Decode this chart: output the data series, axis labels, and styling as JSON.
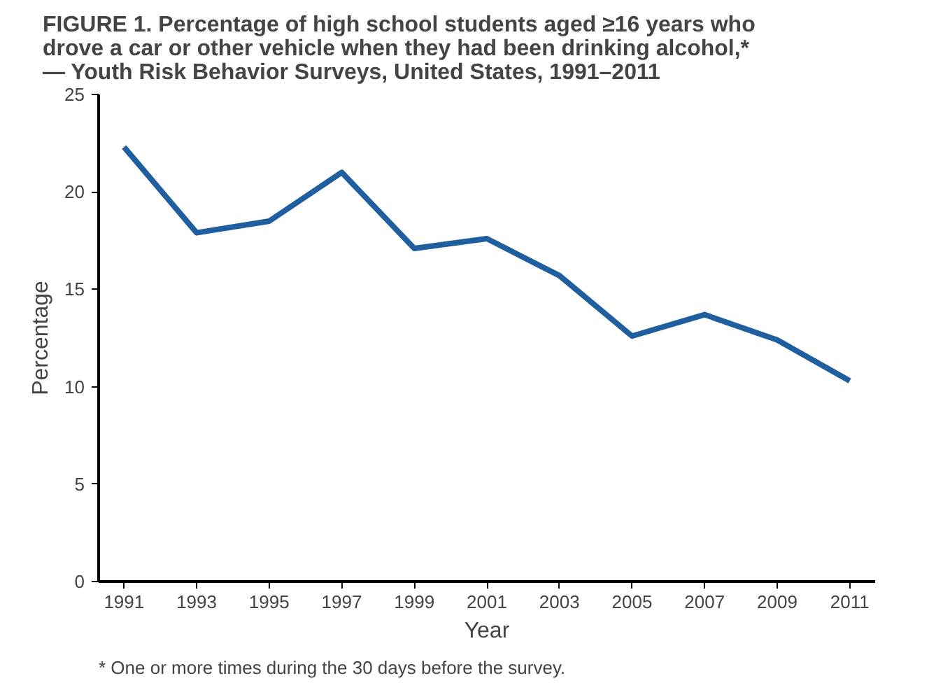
{
  "chart_data": {
    "type": "line",
    "title": "FIGURE 1. Percentage of high school students aged ≥16 years who drove a car or other vehicle when they had been drinking alcohol,* — Youth Risk Behavior Surveys, United States, 1991–2011",
    "xlabel": "Year",
    "ylabel": "Percentage",
    "x": [
      1991,
      1993,
      1995,
      1997,
      1999,
      2001,
      2003,
      2005,
      2007,
      2009,
      2011
    ],
    "series": [
      {
        "color": "#1f5fa0",
        "values": [
          22.3,
          17.9,
          18.5,
          21.0,
          17.1,
          17.6,
          15.7,
          12.6,
          13.7,
          12.4,
          10.3
        ]
      }
    ],
    "xlim": [
      1990.3,
      2011.7
    ],
    "xticks": [
      1991,
      1993,
      1995,
      1997,
      1999,
      2001,
      2003,
      2005,
      2007,
      2009,
      2011
    ],
    "ylim": [
      0,
      25
    ],
    "yticks": [
      0,
      5,
      10,
      15,
      20,
      25
    ],
    "grid": false,
    "marker": "none",
    "line_style": "solid",
    "annotations": [
      "* One or more times during the 30 days before the survey."
    ]
  }
}
